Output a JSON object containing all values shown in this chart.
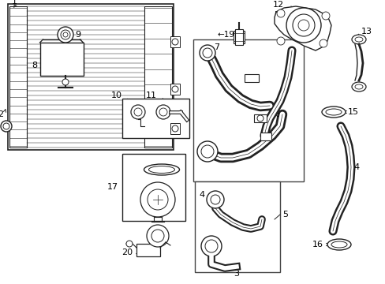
{
  "bg_color": "#ffffff",
  "line_color": "#222222",
  "label_color": "#000000",
  "fig_w": 4.89,
  "fig_h": 3.6,
  "dpi": 100
}
